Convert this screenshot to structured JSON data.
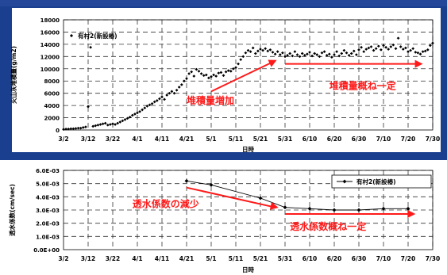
{
  "colors": {
    "background": "#1b3f8f",
    "panel": "#ffffff",
    "grid": "#333333",
    "series": "#000000",
    "annotation": "#ff1a1a"
  },
  "chart_data": [
    {
      "type": "scatter",
      "ylabel": "火山灰堆積量(g/m2)",
      "xlabel": "日時",
      "ylim": [
        0,
        18000
      ],
      "yticks": [
        "0",
        "2000",
        "4000",
        "6000",
        "8000",
        "10000",
        "12000",
        "14000",
        "16000",
        "18000"
      ],
      "xticks": [
        "3/2",
        "3/12",
        "3/22",
        "4/1",
        "4/11",
        "4/21",
        "5/1",
        "5/11",
        "5/21",
        "5/31",
        "6/10",
        "6/20",
        "6/30",
        "7/10",
        "7/20",
        "7/30"
      ],
      "grid": true,
      "legend": {
        "position": "top-left",
        "label": "有村2(新設樁)"
      },
      "series": [
        {
          "name": "有村2(新設樁)",
          "marker": "diamond",
          "x": [
            0,
            1,
            2,
            3,
            4,
            5,
            6,
            7,
            8,
            9,
            10,
            11,
            12,
            13,
            14,
            15,
            16,
            17,
            18,
            19,
            20,
            21,
            22,
            23,
            24,
            25,
            26,
            27,
            28,
            29,
            30,
            31,
            32,
            33,
            34,
            35,
            36,
            37,
            38,
            39,
            40,
            41,
            42,
            43,
            44,
            45,
            46,
            47,
            48,
            49,
            50,
            51,
            52,
            53,
            54,
            55,
            56,
            57,
            58,
            59,
            60,
            61,
            62,
            63,
            64,
            65,
            66,
            67,
            68,
            69,
            70,
            71,
            72,
            73,
            74,
            75,
            76,
            77,
            78,
            79,
            80,
            81,
            82,
            83,
            84,
            85,
            86,
            87,
            88,
            89,
            90,
            91,
            92,
            93,
            94,
            95,
            96,
            97,
            98,
            99,
            100,
            101,
            102,
            103,
            104,
            105,
            106,
            107,
            108,
            109,
            110,
            111,
            112,
            113,
            114,
            115,
            116,
            117,
            118,
            119,
            120,
            121,
            122,
            123,
            124,
            125,
            126,
            127,
            128,
            129,
            130,
            131,
            132,
            133,
            134,
            135,
            136,
            137,
            138,
            139,
            140,
            141,
            142,
            143,
            144,
            145,
            146,
            147,
            148,
            149,
            150
          ],
          "y": [
            100,
            150,
            150,
            200,
            200,
            250,
            300,
            300,
            400,
            500,
            3800,
            13500,
            600,
            700,
            800,
            900,
            1000,
            1100,
            800,
            900,
            1000,
            900,
            1100,
            1300,
            1500,
            1700,
            1900,
            2100,
            2400,
            2600,
            2800,
            3000,
            3300,
            3600,
            3900,
            4100,
            4300,
            4600,
            4800,
            5100,
            5400,
            5000,
            5700,
            6000,
            6300,
            6000,
            6500,
            7000,
            7400,
            8000,
            8400,
            9200,
            9500,
            8800,
            9900,
            9600,
            9200,
            8900,
            9000,
            8500,
            8700,
            9000,
            8800,
            9300,
            9400,
            8900,
            9500,
            9700,
            9600,
            10000,
            10200,
            10800,
            11500,
            12000,
            12600,
            13000,
            12800,
            13400,
            12500,
            12900,
            13200,
            13000,
            13300,
            12900,
            13100,
            12700,
            12400,
            12800,
            12300,
            12600,
            12000,
            12200,
            12500,
            12100,
            12800,
            12300,
            12000,
            12500,
            12200,
            12400,
            12700,
            12100,
            12500,
            12300,
            12000,
            12600,
            12800,
            12200,
            12400,
            11900,
            12300,
            12800,
            12100,
            12500,
            13000,
            12600,
            12200,
            12500,
            12900,
            12300,
            13100,
            13500,
            12800,
            13200,
            13400,
            13600,
            13000,
            13300,
            13700,
            13100,
            13800,
            13500,
            13200,
            13600,
            13900,
            13300,
            15000,
            13600,
            13200,
            13400,
            12800,
            13000,
            13300,
            12700,
            12600,
            12400,
            12800,
            12900,
            13100,
            13800,
            14200
          ]
        }
      ],
      "annotations": [
        "堆積量増加",
        "堆積量概ね一定"
      ]
    },
    {
      "type": "line",
      "ylabel": "透水係数(cm/sec)",
      "xlabel": "日時",
      "ylim": [
        0,
        0.006
      ],
      "yticks": [
        "0.0E+00",
        "1.0E-03",
        "2.0E-03",
        "3.0E-03",
        "4.0E-03",
        "5.0E-03",
        "6.0E-03"
      ],
      "xticks": [
        "3/2",
        "3/12",
        "3/22",
        "4/1",
        "4/11",
        "4/21",
        "5/1",
        "5/11",
        "5/21",
        "5/31",
        "6/10",
        "6/20",
        "6/30",
        "7/10",
        "7/20",
        "7/30"
      ],
      "grid": true,
      "legend": {
        "position": "top-right",
        "label": "有村2(新設樁)"
      },
      "series": [
        {
          "name": "有村2(新設樁)",
          "marker": "diamond",
          "x": [
            "4/21",
            "5/1",
            "5/21",
            "5/31",
            "6/10",
            "6/20",
            "6/30",
            "7/10",
            "7/20"
          ],
          "y": [
            0.0052,
            0.0049,
            0.0039,
            0.0032,
            0.0031,
            0.003,
            0.003,
            0.0031,
            0.0031
          ]
        }
      ],
      "annotations": [
        "透水係数の減少",
        "透水係数概ね一定"
      ]
    }
  ]
}
